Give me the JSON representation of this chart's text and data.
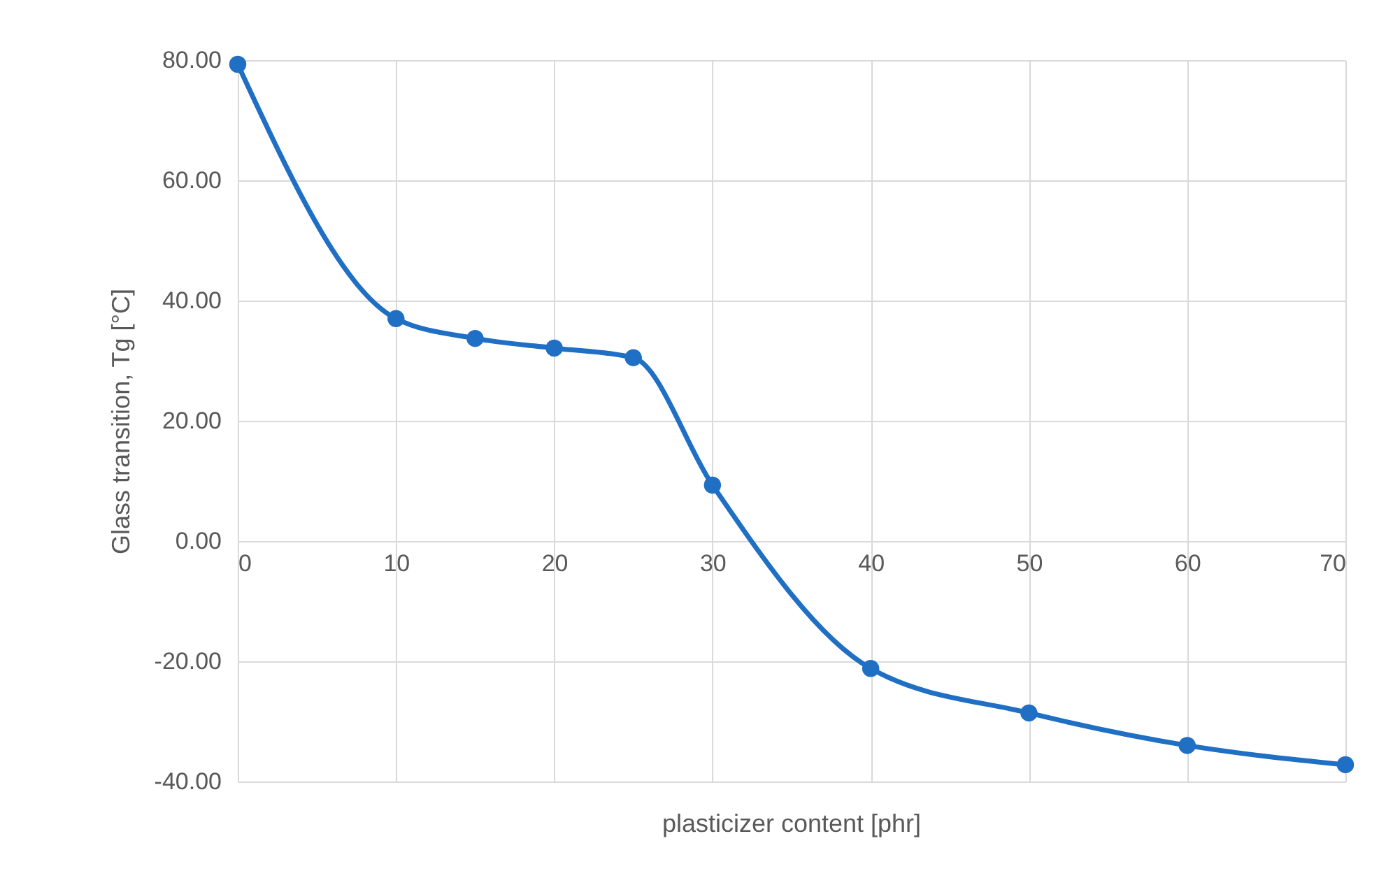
{
  "chart_data": {
    "type": "line",
    "xlabel": "plasticizer content [phr]",
    "ylabel": "Glass transition, Tg [°C]",
    "x": [
      0,
      10,
      15,
      20,
      25,
      30,
      40,
      50,
      60,
      70
    ],
    "series": [
      {
        "color": "#1f6fc5",
        "values": [
          79.3,
          37.0,
          33.7,
          32.1,
          30.5,
          9.3,
          -21.2,
          -28.6,
          -34.0,
          -37.2
        ]
      }
    ],
    "xlim": [
      0,
      70
    ],
    "xticks": [
      0,
      10,
      20,
      30,
      40,
      50,
      60,
      70
    ],
    "ylim": [
      -40,
      80
    ],
    "yticks": [
      {
        "value": -40,
        "label": "-40.00"
      },
      {
        "value": -20,
        "label": "-20.00"
      },
      {
        "value": 0,
        "label": "0.00"
      },
      {
        "value": 20,
        "label": "20.00"
      },
      {
        "value": 40,
        "label": "40.00"
      },
      {
        "value": 60,
        "label": "60.00"
      },
      {
        "value": 80,
        "label": "80.00"
      }
    ],
    "grid": true,
    "marker": "circle",
    "line_style": "solid"
  }
}
